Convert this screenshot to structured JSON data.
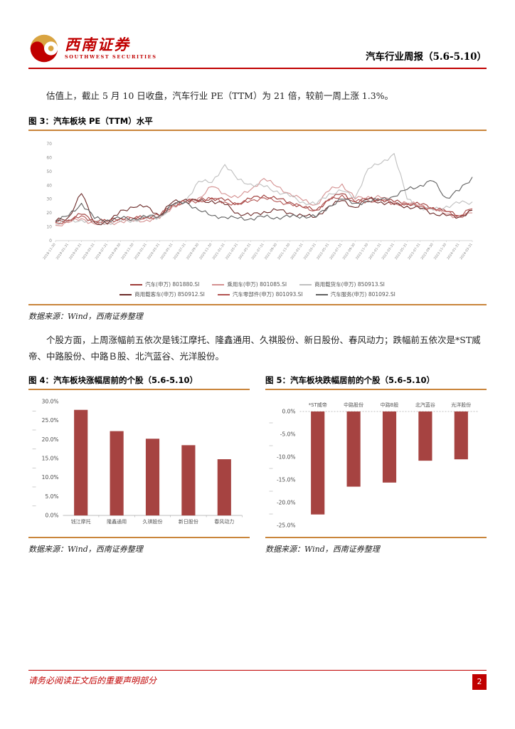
{
  "header": {
    "logo_cn": "西南证券",
    "logo_en": "SOUTHWEST SECURITIES",
    "report_title": "汽车行业周报（5.6-5.10）"
  },
  "paragraphs": {
    "valuation": "估值上，截止 5 月 10 日收盘，汽车行业 PE（TTM）为 21 倍，较前一周上涨 1.3%。",
    "stocks": "个股方面，上周涨幅前五依次是钱江摩托、隆鑫通用、久祺股份、新日股份、春风动力；跌幅前五依次是*ST威帝、中路股份、中路Ｂ股、北汽蓝谷、光洋股份。"
  },
  "figures": {
    "fig3": {
      "title": "图 3：汽车板块 PE（TTM）水平",
      "source": "数据来源：Wind，西南证券整理"
    },
    "fig4": {
      "title": "图 4：汽车板块涨幅居前的个股（5.6-5.10）",
      "source": "数据来源：Wind，西南证券整理"
    },
    "fig5": {
      "title": "图 5：汽车板块跌幅居前的个股（5.6-5.10）",
      "source": "数据来源：Wind，西南证券整理"
    }
  },
  "footer": {
    "disclaimer": "请务必阅读正文后的重要声明部分",
    "page_number": "2"
  },
  "colors": {
    "accent_red": "#c00000",
    "rule_gold": "#c9853b",
    "bar_red": "#a64341"
  },
  "chart_data": [
    {
      "type": "line",
      "title": "汽车板块PE（TTM）水平",
      "ylim": [
        0,
        70
      ],
      "ytick": 10,
      "grid": false,
      "legend_position": "bottom",
      "x": [
        "2018-11-30",
        "2019-01-31",
        "2019-03-31",
        "2019-05-31",
        "2019-07-31",
        "2019-09-30",
        "2019-11-30",
        "2020-01-31",
        "2020-03-31",
        "2020-05-31",
        "2020-07-31",
        "2020-09-30",
        "2020-11-30",
        "2021-01-31",
        "2021-03-31",
        "2021-05-31",
        "2021-07-31",
        "2021-09-30",
        "2021-11-30",
        "2022-01-31",
        "2022-03-31",
        "2022-05-31",
        "2022-07-31",
        "2022-09-30",
        "2022-11-30",
        "2023-01-31",
        "2023-03-31",
        "2023-05-31",
        "2023-07-31",
        "2023-09-30",
        "2023-11-30",
        "2024-01-31",
        "2024-03-31"
      ],
      "series": [
        {
          "name": "汽车(申万) 801880.SI",
          "color": "#9e3b38",
          "values": [
            13,
            15,
            19,
            14,
            14,
            16,
            16,
            17,
            17,
            26,
            28,
            29,
            31,
            29,
            27,
            30,
            33,
            30,
            28,
            24,
            22,
            30,
            34,
            28,
            30,
            30,
            28,
            27,
            26,
            24,
            21,
            18,
            22
          ]
        },
        {
          "name": "乘用车(申万) 801085.SI",
          "color": "#d49090",
          "values": [
            11,
            13,
            16,
            12,
            12,
            14,
            14,
            15,
            16,
            25,
            28,
            31,
            39,
            34,
            31,
            37,
            45,
            39,
            34,
            29,
            26,
            36,
            41,
            30,
            32,
            31,
            28,
            27,
            26,
            23,
            19,
            17,
            20
          ]
        },
        {
          "name": "商用载货车(申万) 850913.SI",
          "color": "#bfbfbf",
          "values": [
            12,
            14,
            15,
            13,
            13,
            14,
            15,
            16,
            17,
            25,
            29,
            43,
            42,
            55,
            44,
            41,
            39,
            36,
            32,
            28,
            26,
            34,
            36,
            31,
            52,
            56,
            63,
            30,
            24,
            22,
            25,
            27,
            28
          ]
        },
        {
          "name": "商用载客车(申万) 850912.SI",
          "color": "#6b2a28",
          "values": [
            14,
            17,
            34,
            13,
            12,
            22,
            24,
            25,
            18,
            28,
            30,
            28,
            29,
            26,
            20,
            18,
            21,
            22,
            20,
            18,
            17,
            25,
            29,
            24,
            30,
            28,
            26,
            25,
            23,
            20,
            18,
            17,
            22
          ]
        },
        {
          "name": "汽车零部件(申万) 801093.SI",
          "color": "#b25250",
          "values": [
            13,
            14,
            18,
            14,
            14,
            16,
            16,
            17,
            18,
            26,
            28,
            29,
            30,
            28,
            26,
            29,
            31,
            28,
            27,
            24,
            22,
            29,
            33,
            28,
            29,
            29,
            27,
            26,
            25,
            23,
            21,
            18,
            23
          ]
        },
        {
          "name": "汽车服务(申万) 801092.SI",
          "color": "#606060",
          "values": [
            14,
            18,
            27,
            16,
            15,
            16,
            16,
            17,
            18,
            26,
            28,
            22,
            18,
            17,
            16,
            16,
            17,
            17,
            17,
            18,
            17,
            25,
            30,
            27,
            28,
            30,
            32,
            37,
            40,
            43,
            31,
            36,
            46
          ]
        }
      ]
    },
    {
      "type": "bar",
      "title": "汽车板块涨幅居前的个股（5.6-5.10）",
      "categories": [
        "钱江摩托",
        "隆鑫通用",
        "久祺股份",
        "新日股份",
        "春风动力"
      ],
      "values": [
        27.8,
        22.2,
        20.2,
        18.5,
        14.8
      ],
      "unit": "%",
      "ylim": [
        0,
        30
      ],
      "ytick": 5,
      "bar_color": "#a64341"
    },
    {
      "type": "bar",
      "title": "汽车板块跌幅居前的个股（5.6-5.10）",
      "categories": [
        "*ST威帝",
        "中路股份",
        "中路B股",
        "北汽蓝谷",
        "光洋股份"
      ],
      "values": [
        -22.6,
        -16.5,
        -15.6,
        -10.8,
        -10.5
      ],
      "unit": "%",
      "ylim": [
        -25,
        0
      ],
      "ytick": 5,
      "bar_color": "#a64341"
    }
  ]
}
